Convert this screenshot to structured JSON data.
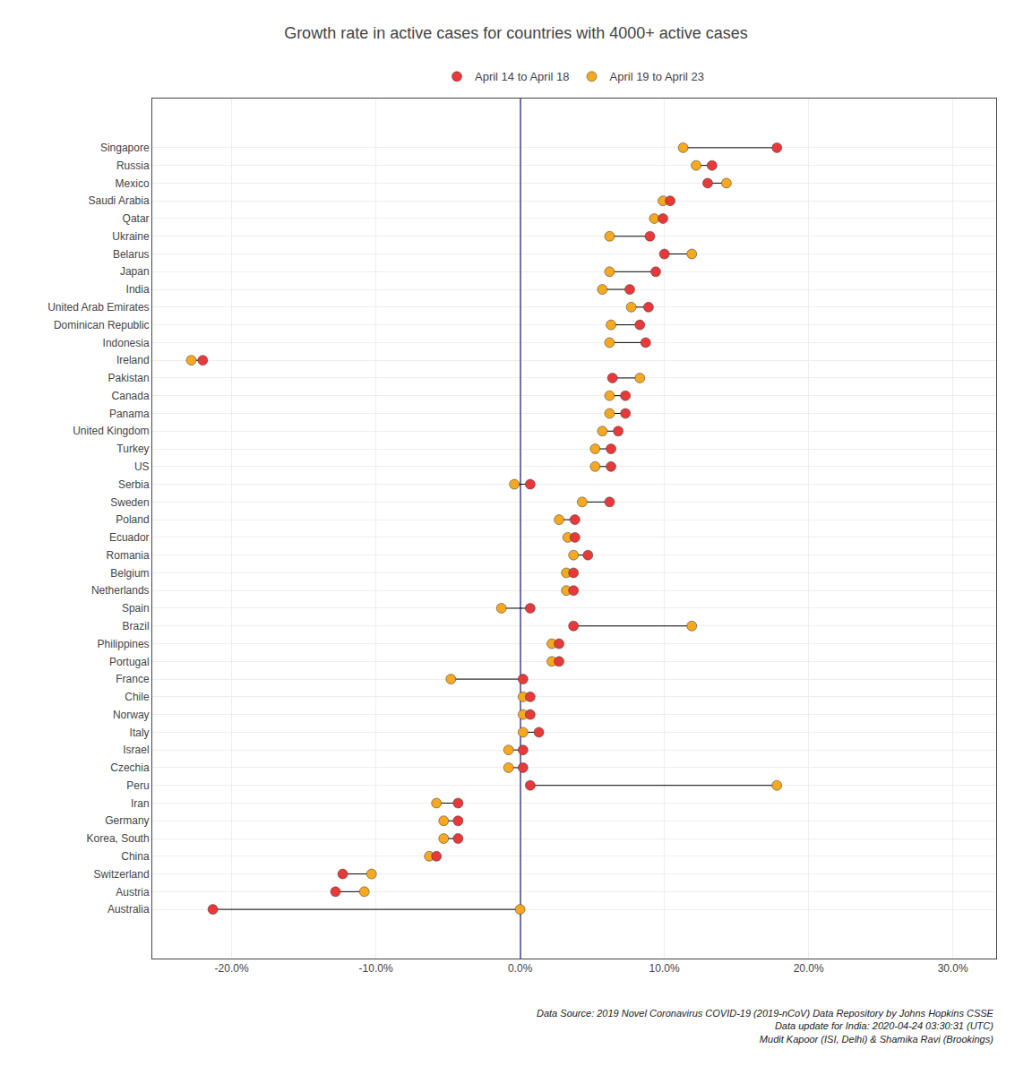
{
  "chart_data": {
    "type": "dumbbell",
    "title": "Growth rate in active cases for countries with 4000+ active cases",
    "categories": [
      "Singapore",
      "Russia",
      "Mexico",
      "Saudi Arabia",
      "Qatar",
      "Ukraine",
      "Belarus",
      "Japan",
      "India",
      "United Arab Emirates",
      "Dominican Republic",
      "Indonesia",
      "Ireland",
      "Pakistan",
      "Canada",
      "Panama",
      "United Kingdom",
      "Turkey",
      "US",
      "Serbia",
      "Sweden",
      "Poland",
      "Ecuador",
      "Romania",
      "Belgium",
      "Netherlands",
      "Spain",
      "Brazil",
      "Philippines",
      "Portugal",
      "France",
      "Chile",
      "Norway",
      "Italy",
      "Israel",
      "Czechia",
      "Peru",
      "Iran",
      "Germany",
      "Korea, South",
      "China",
      "Switzerland",
      "Austria",
      "Australia"
    ],
    "series": [
      {
        "name": "April 14 to April 18",
        "color": "#E8393A",
        "values": [
          0.178,
          0.133,
          0.13,
          0.104,
          0.099,
          0.09,
          0.1,
          0.094,
          0.076,
          0.089,
          0.083,
          0.087,
          -0.22,
          0.064,
          0.073,
          0.073,
          0.068,
          0.063,
          0.063,
          0.007,
          0.062,
          0.038,
          0.038,
          0.047,
          0.037,
          0.037,
          0.007,
          0.037,
          0.027,
          0.027,
          0.002,
          0.007,
          0.007,
          0.013,
          0.002,
          0.002,
          0.007,
          -0.043,
          -0.043,
          -0.043,
          -0.058,
          -0.123,
          -0.128,
          -0.213
        ]
      },
      {
        "name": "April 19 to April 23",
        "color": "#F5A820",
        "values": [
          0.113,
          0.122,
          0.143,
          0.099,
          0.093,
          0.062,
          0.119,
          0.062,
          0.057,
          0.077,
          0.063,
          0.062,
          -0.228,
          0.083,
          0.062,
          0.062,
          0.057,
          0.052,
          0.052,
          -0.004,
          0.043,
          0.027,
          0.033,
          0.037,
          0.032,
          0.032,
          -0.013,
          0.119,
          0.022,
          0.022,
          -0.048,
          0.002,
          0.002,
          0.002,
          -0.008,
          -0.008,
          0.178,
          -0.058,
          -0.053,
          -0.053,
          -0.063,
          -0.103,
          -0.108,
          0.0
        ]
      }
    ],
    "orientation": "horizontal",
    "xlim": [
      -0.255,
      0.33
    ],
    "xticks": [
      {
        "value": -0.2,
        "label": "-20.0%"
      },
      {
        "value": -0.1,
        "label": "-10.0%"
      },
      {
        "value": 0.0,
        "label": "0.0%"
      },
      {
        "value": 0.1,
        "label": "10.0%"
      },
      {
        "value": 0.2,
        "label": "20.0%"
      },
      {
        "value": 0.3,
        "label": "30.0%"
      }
    ],
    "grid": true,
    "legend": "top",
    "annotations": [
      "Data Source: 2019 Novel Coronavirus COVID-19 (2019-nCoV) Data Repository by Johns Hopkins CSSE",
      "Data update for India: 2020-04-24 03:30:31 (UTC)",
      "Mudit Kapoor (ISI, Delhi) & Shamika Ravi (Brookings)"
    ]
  }
}
